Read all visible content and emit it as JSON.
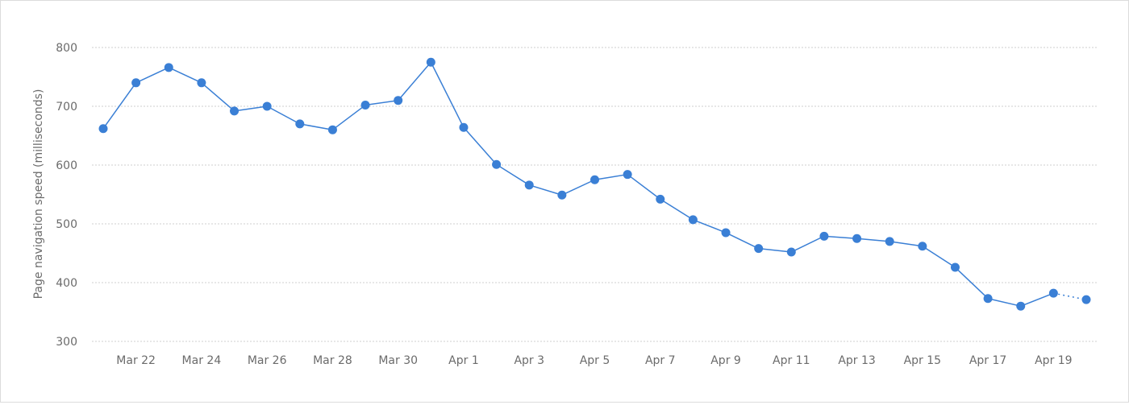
{
  "chart_data": {
    "type": "line",
    "title": "",
    "xlabel": "",
    "ylabel": "Page navigation speed (milliseconds)",
    "ylim": [
      300,
      800
    ],
    "yticks": [
      300,
      400,
      500,
      600,
      700,
      800
    ],
    "grid": true,
    "color": "#3a7fd5",
    "categories": [
      "Mar 21",
      "Mar 22",
      "Mar 23",
      "Mar 24",
      "Mar 25",
      "Mar 26",
      "Mar 27",
      "Mar 28",
      "Mar 29",
      "Mar 30",
      "Mar 31",
      "Apr 1",
      "Apr 2",
      "Apr 3",
      "Apr 4",
      "Apr 5",
      "Apr 6",
      "Apr 7",
      "Apr 8",
      "Apr 9",
      "Apr 10",
      "Apr 11",
      "Apr 12",
      "Apr 13",
      "Apr 14",
      "Apr 15",
      "Apr 16",
      "Apr 17",
      "Apr 18",
      "Apr 19",
      "Apr 20"
    ],
    "xtick_labels": [
      "Mar 22",
      "Mar 24",
      "Mar 26",
      "Mar 28",
      "Mar 30",
      "Apr 1",
      "Apr 3",
      "Apr 5",
      "Apr 7",
      "Apr 9",
      "Apr 11",
      "Apr 13",
      "Apr 15",
      "Apr 17",
      "Apr 19"
    ],
    "values": [
      662,
      740,
      766,
      740,
      692,
      700,
      670,
      660,
      702,
      710,
      775,
      664,
      601,
      566,
      549,
      575,
      584,
      542,
      507,
      485,
      458,
      452,
      479,
      475,
      470,
      462,
      426,
      373,
      360,
      382,
      371
    ],
    "last_segment_style": "dotted"
  }
}
